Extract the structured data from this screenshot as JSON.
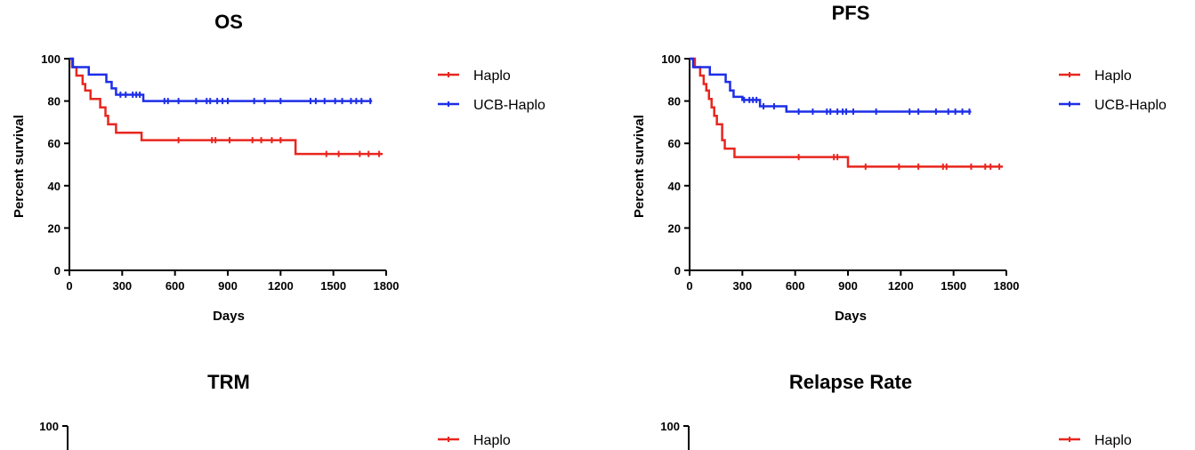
{
  "chart_data": [
    {
      "type": "line",
      "title": "OS",
      "xlabel": "Days",
      "ylabel": "Percent survival",
      "xlim": [
        0,
        1800
      ],
      "ylim": [
        0,
        100
      ],
      "x_ticks": [
        "0",
        "300",
        "600",
        "900",
        "1200",
        "1500",
        "1800"
      ],
      "y_ticks": [
        "0",
        "20",
        "40",
        "60",
        "80",
        "100"
      ],
      "legend_position": "top-right",
      "series": [
        {
          "name": "Haplo",
          "color": "#e8261f",
          "steps": [
            [
              0,
              100
            ],
            [
              15,
              96
            ],
            [
              40,
              92
            ],
            [
              75,
              88
            ],
            [
              90,
              85
            ],
            [
              120,
              81
            ],
            [
              165,
              81
            ],
            [
              175,
              77
            ],
            [
              205,
              73
            ],
            [
              220,
              69
            ],
            [
              265,
              65
            ],
            [
              410,
              61.5
            ],
            [
              1285,
              55
            ],
            [
              1780,
              55
            ]
          ],
          "censored": [
            [
              620,
              61.5
            ],
            [
              810,
              61.5
            ],
            [
              830,
              61.5
            ],
            [
              910,
              61.5
            ],
            [
              1040,
              61.5
            ],
            [
              1090,
              61.5
            ],
            [
              1150,
              61.5
            ],
            [
              1200,
              61.5
            ],
            [
              1460,
              55
            ],
            [
              1530,
              55
            ],
            [
              1650,
              55
            ],
            [
              1700,
              55
            ],
            [
              1760,
              55
            ]
          ]
        },
        {
          "name": "UCB-Haplo",
          "color": "#1d2ee8",
          "steps": [
            [
              0,
              100
            ],
            [
              20,
              96
            ],
            [
              110,
              92.5
            ],
            [
              210,
              89
            ],
            [
              240,
              86
            ],
            [
              265,
              83
            ],
            [
              420,
              80
            ],
            [
              1720,
              80
            ]
          ],
          "censored": [
            [
              290,
              83
            ],
            [
              320,
              83
            ],
            [
              360,
              83
            ],
            [
              380,
              83
            ],
            [
              400,
              83
            ],
            [
              540,
              80
            ],
            [
              560,
              80
            ],
            [
              620,
              80
            ],
            [
              720,
              80
            ],
            [
              780,
              80
            ],
            [
              800,
              80
            ],
            [
              840,
              80
            ],
            [
              870,
              80
            ],
            [
              900,
              80
            ],
            [
              1050,
              80
            ],
            [
              1110,
              80
            ],
            [
              1200,
              80
            ],
            [
              1370,
              80
            ],
            [
              1400,
              80
            ],
            [
              1450,
              80
            ],
            [
              1510,
              80
            ],
            [
              1550,
              80
            ],
            [
              1600,
              80
            ],
            [
              1630,
              80
            ],
            [
              1660,
              80
            ],
            [
              1710,
              80
            ]
          ]
        }
      ]
    },
    {
      "type": "line",
      "title": "PFS",
      "xlabel": "Days",
      "ylabel": "Percent survival",
      "xlim": [
        0,
        1800
      ],
      "ylim": [
        0,
        100
      ],
      "x_ticks": [
        "0",
        "300",
        "600",
        "900",
        "1200",
        "1500",
        "1800"
      ],
      "y_ticks": [
        "0",
        "20",
        "40",
        "60",
        "80",
        "100"
      ],
      "legend_position": "top-right",
      "series": [
        {
          "name": "Haplo",
          "color": "#e8261f",
          "steps": [
            [
              0,
              100
            ],
            [
              30,
              96
            ],
            [
              60,
              92
            ],
            [
              80,
              88
            ],
            [
              95,
              85
            ],
            [
              110,
              81
            ],
            [
              125,
              77
            ],
            [
              140,
              73
            ],
            [
              155,
              69
            ],
            [
              185,
              61.5
            ],
            [
              200,
              57.5
            ],
            [
              255,
              53.5
            ],
            [
              900,
              49
            ],
            [
              1780,
              49
            ]
          ],
          "censored": [
            [
              620,
              53.5
            ],
            [
              820,
              53.5
            ],
            [
              840,
              53.5
            ],
            [
              1000,
              49
            ],
            [
              1190,
              49
            ],
            [
              1300,
              49
            ],
            [
              1440,
              49
            ],
            [
              1460,
              49
            ],
            [
              1600,
              49
            ],
            [
              1680,
              49
            ],
            [
              1710,
              49
            ],
            [
              1760,
              49
            ]
          ]
        },
        {
          "name": "UCB-Haplo",
          "color": "#1d2ee8",
          "steps": [
            [
              0,
              100
            ],
            [
              20,
              96
            ],
            [
              115,
              92.5
            ],
            [
              205,
              89
            ],
            [
              230,
              85
            ],
            [
              250,
              82
            ],
            [
              300,
              80.5
            ],
            [
              400,
              77.5
            ],
            [
              550,
              75
            ],
            [
              1600,
              75
            ]
          ],
          "censored": [
            [
              310,
              80.5
            ],
            [
              340,
              80.5
            ],
            [
              360,
              80.5
            ],
            [
              380,
              80.5
            ],
            [
              420,
              77.5
            ],
            [
              480,
              77.5
            ],
            [
              620,
              75
            ],
            [
              700,
              75
            ],
            [
              780,
              75
            ],
            [
              800,
              75
            ],
            [
              840,
              75
            ],
            [
              870,
              75
            ],
            [
              890,
              75
            ],
            [
              930,
              75
            ],
            [
              1060,
              75
            ],
            [
              1250,
              75
            ],
            [
              1300,
              75
            ],
            [
              1400,
              75
            ],
            [
              1470,
              75
            ],
            [
              1510,
              75
            ],
            [
              1550,
              75
            ],
            [
              1590,
              75
            ]
          ]
        }
      ]
    },
    {
      "type": "line",
      "title": "TRM",
      "y_ticks": [
        "100"
      ],
      "legend_position": "top-right",
      "series": [
        {
          "name": "Haplo",
          "color": "#e8261f"
        }
      ]
    },
    {
      "type": "line",
      "title": "Relapse Rate",
      "y_ticks": [
        "100"
      ],
      "legend_position": "top-right",
      "series": [
        {
          "name": "Haplo",
          "color": "#e8261f"
        }
      ]
    }
  ]
}
